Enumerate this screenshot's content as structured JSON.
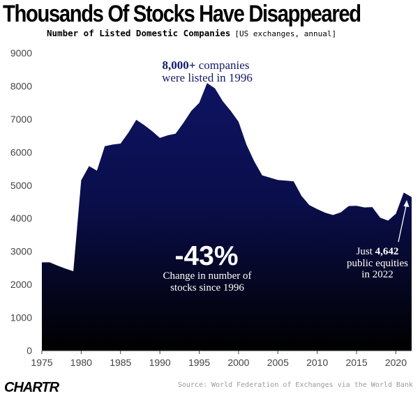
{
  "header": {
    "title": "Thousands Of Stocks Have Disappeared",
    "subtitle": "Number of Listed Domestic Companies",
    "subtitle_note": "[US exchanges, annual]"
  },
  "footer": {
    "brand": "CHARTR",
    "source": "Source: World Federation of Exchanges via the World Bank"
  },
  "colors": {
    "area_top": "#0e1362",
    "area_bottom": "#000000",
    "annotation_top": "#14196b",
    "annotation_inside": "#ffffff"
  },
  "annotations": {
    "peak_line1_bold": "8,000+",
    "peak_line1_rest": " companies",
    "peak_line2": "were listed in 1996",
    "change_value": "-43%",
    "change_line1": "Change in number of",
    "change_line2": "stocks since 1996",
    "latest_line1_pre": "Just ",
    "latest_line1_bold": "4,642",
    "latest_line2": "public equities",
    "latest_line3": "in 2022"
  },
  "chart_data": {
    "type": "area",
    "title": "Thousands Of Stocks Have Disappeared",
    "subtitle": "Number of Listed Domestic Companies [US exchanges, annual]",
    "xlabel": "",
    "ylabel": "",
    "xlim": [
      1975,
      2022
    ],
    "ylim": [
      0,
      9000
    ],
    "x_ticks": [
      1975,
      1980,
      1985,
      1990,
      1995,
      2000,
      2005,
      2010,
      2015,
      2020
    ],
    "y_ticks": [
      0,
      1000,
      2000,
      3000,
      4000,
      5000,
      6000,
      7000,
      8000,
      9000
    ],
    "grid": false,
    "series": [
      {
        "x": [
          1975,
          1976,
          1977,
          1978,
          1979,
          1980,
          1981,
          1982,
          1983,
          1984,
          1985,
          1986,
          1987,
          1988,
          1989,
          1990,
          1991,
          1992,
          1993,
          1994,
          1995,
          1996,
          1997,
          1998,
          1999,
          2000,
          2001,
          2002,
          2003,
          2004,
          2005,
          2006,
          2007,
          2008,
          2009,
          2010,
          2011,
          2012,
          2013,
          2014,
          2015,
          2016,
          2017,
          2018,
          2019,
          2020,
          2021,
          2022
        ],
        "values": [
          2670,
          2670,
          2570,
          2480,
          2400,
          5150,
          5580,
          5440,
          6180,
          6230,
          6260,
          6590,
          6980,
          6820,
          6640,
          6430,
          6510,
          6560,
          6890,
          7250,
          7490,
          8090,
          7930,
          7540,
          7250,
          6920,
          6230,
          5720,
          5300,
          5230,
          5160,
          5140,
          5120,
          4680,
          4400,
          4280,
          4170,
          4100,
          4180,
          4370,
          4380,
          4330,
          4340,
          4020,
          3930,
          4140,
          4780,
          4642
        ]
      }
    ]
  }
}
